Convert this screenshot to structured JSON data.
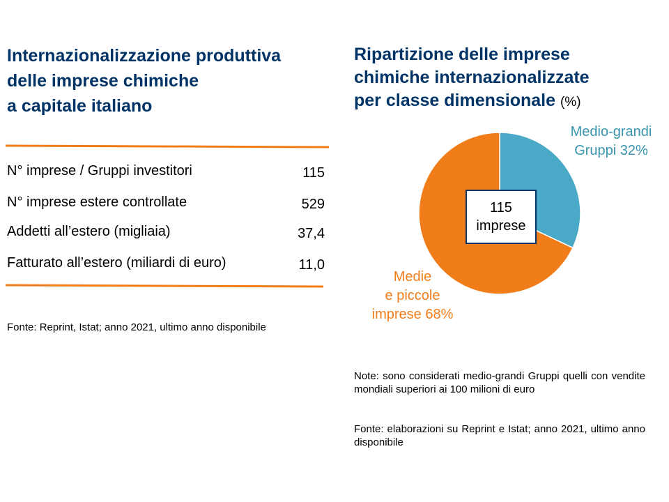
{
  "left_panel": {
    "title": [
      "Internazionalizzazione produttiva",
      "delle imprese chimiche",
      "a capitale italiano"
    ],
    "rows": [
      {
        "label": "N° imprese / Gruppi investitori",
        "value": "115"
      },
      {
        "label": "N° imprese estere controllate",
        "value": "529"
      },
      {
        "label": "Addetti all’estero (migliaia)",
        "value": "37,4"
      },
      {
        "label": "Fatturato all’estero (miliardi di euro)",
        "value": "11,0"
      }
    ],
    "source": "Fonte: Reprint, Istat; anno 2021, ultimo anno disponibile"
  },
  "right_panel": {
    "title": [
      "Ripartizione delle imprese",
      "chimiche internazionalizzate",
      "per classe dimensionale"
    ],
    "title_unit": "(%)",
    "center_label": [
      "115",
      "imprese"
    ],
    "note": "Note: sono considerati medio-grandi Gruppi quelli con vendite mondiali superiori ai 100 milioni di euro",
    "source": "Fonte: elaborazioni su Reprint e Istat; anno 2021, ultimo anno disponibile"
  },
  "colors": {
    "accent_orange": "#f07d1a",
    "teal": "#4aa9c6",
    "teal_text": "#3a95ad",
    "navy": "#003366"
  },
  "chart_data": {
    "type": "pie",
    "title": "Ripartizione delle imprese chimiche internazionalizzate per classe dimensionale (%)",
    "center_text": "115 imprese",
    "slices": [
      {
        "name": "Medio-grandi Gruppi",
        "label_lines": [
          "Medio-grandi",
          "Gruppi 32%"
        ],
        "value": 32,
        "color": "#4aa9c6"
      },
      {
        "name": "Medie e piccole imprese",
        "label_lines": [
          "Medie",
          "e piccole",
          "imprese 68%"
        ],
        "value": 68,
        "color": "#f07d1a"
      }
    ]
  }
}
